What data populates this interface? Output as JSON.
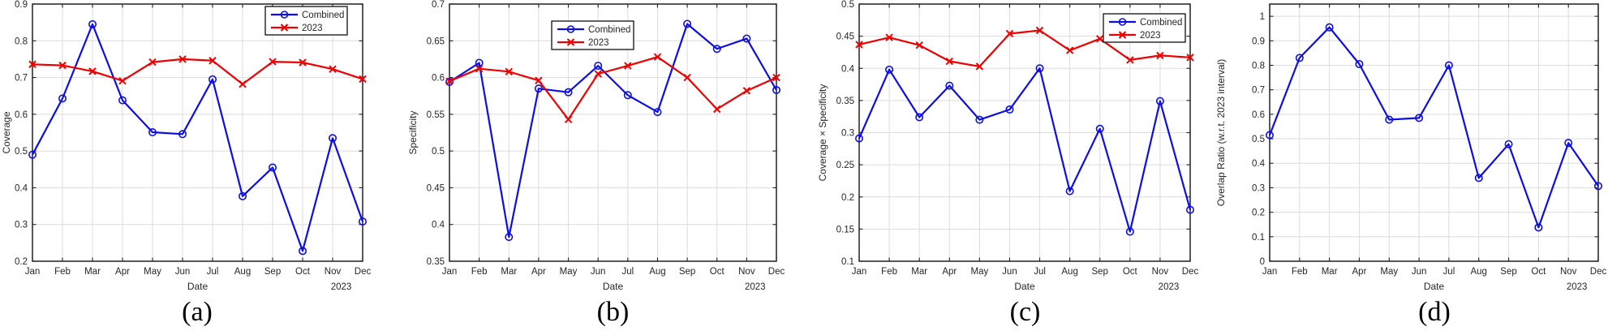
{
  "figure": {
    "background": "#ffffff"
  },
  "colors": {
    "combined": "#0d0de6",
    "year2023": "#ef0000",
    "grid": "#dcdcdc",
    "axis": "#202020",
    "text": "#262626",
    "legend_bg": "#ffffff"
  },
  "chart_data": [
    {
      "id": "a",
      "type": "line",
      "caption": "(a)",
      "xlabel": "Date",
      "ylabel": "Coverage",
      "x_secondary_label": "2023",
      "categories": [
        "Jan",
        "Feb",
        "Mar",
        "Apr",
        "May",
        "Jun",
        "Jul",
        "Aug",
        "Sep",
        "Oct",
        "Nov",
        "Dec"
      ],
      "ylim": [
        0.2,
        0.9
      ],
      "yticks": [
        0.2,
        0.3,
        0.4,
        0.5,
        0.6,
        0.7,
        0.8,
        0.9
      ],
      "ytick_labels": [
        "0.2",
        "0.3",
        "0.4",
        "0.5",
        "0.6",
        "0.7",
        "0.8",
        "0.9"
      ],
      "grid": true,
      "legend": {
        "visible": true,
        "position": "top-right",
        "entries": [
          "Combined",
          "2023"
        ]
      },
      "series": [
        {
          "name": "Combined",
          "color_key": "combined",
          "marker": "circle",
          "values": [
            0.49,
            0.643,
            0.845,
            0.638,
            0.551,
            0.546,
            0.695,
            0.377,
            0.455,
            0.228,
            0.535,
            0.308
          ]
        },
        {
          "name": "2023",
          "color_key": "year2023",
          "marker": "x",
          "values": [
            0.736,
            0.733,
            0.717,
            0.691,
            0.742,
            0.75,
            0.746,
            0.682,
            0.743,
            0.741,
            0.723,
            0.696
          ]
        }
      ]
    },
    {
      "id": "b",
      "type": "line",
      "caption": "(b)",
      "xlabel": "Date",
      "ylabel": "Specificity",
      "x_secondary_label": "2023",
      "categories": [
        "Jan",
        "Feb",
        "Mar",
        "Apr",
        "May",
        "Jun",
        "Jul",
        "Aug",
        "Sep",
        "Oct",
        "Nov",
        "Dec"
      ],
      "ylim": [
        0.35,
        0.7
      ],
      "yticks": [
        0.35,
        0.4,
        0.45,
        0.5,
        0.55,
        0.6,
        0.65,
        0.7
      ],
      "ytick_labels": [
        "0.35",
        "0.4",
        "0.45",
        "0.5",
        "0.55",
        "0.6",
        "0.65",
        "0.7"
      ],
      "grid": true,
      "legend": {
        "visible": true,
        "position": "top-center",
        "entries": [
          "Combined",
          "2023"
        ]
      },
      "series": [
        {
          "name": "Combined",
          "color_key": "combined",
          "marker": "circle",
          "values": [
            0.594,
            0.62,
            0.383,
            0.585,
            0.58,
            0.616,
            0.576,
            0.553,
            0.673,
            0.639,
            0.653,
            0.583
          ]
        },
        {
          "name": "2023",
          "color_key": "year2023",
          "marker": "x",
          "values": [
            0.595,
            0.612,
            0.608,
            0.596,
            0.543,
            0.605,
            0.616,
            0.628,
            0.6,
            0.557,
            0.582,
            0.6
          ]
        }
      ]
    },
    {
      "id": "c",
      "type": "line",
      "caption": "(c)",
      "xlabel": "Date",
      "ylabel": "Coverage × Specificity",
      "x_secondary_label": "2023",
      "categories": [
        "Jan",
        "Feb",
        "Mar",
        "Apr",
        "May",
        "Jun",
        "Jul",
        "Aug",
        "Sep",
        "Oct",
        "Nov",
        "Dec"
      ],
      "ylim": [
        0.1,
        0.5
      ],
      "yticks": [
        0.1,
        0.15,
        0.2,
        0.25,
        0.3,
        0.35,
        0.4,
        0.45,
        0.5
      ],
      "ytick_labels": [
        "0.1",
        "0.15",
        "0.2",
        "0.25",
        "0.3",
        "0.35",
        "0.4",
        "0.45",
        "0.5"
      ],
      "grid": true,
      "legend": {
        "visible": true,
        "position": "top-right",
        "entries": [
          "Combined",
          "2023"
        ]
      },
      "series": [
        {
          "name": "Combined",
          "color_key": "combined",
          "marker": "circle",
          "values": [
            0.291,
            0.398,
            0.324,
            0.373,
            0.32,
            0.336,
            0.4,
            0.209,
            0.306,
            0.146,
            0.349,
            0.18
          ]
        },
        {
          "name": "2023",
          "color_key": "year2023",
          "marker": "x",
          "values": [
            0.437,
            0.448,
            0.436,
            0.411,
            0.403,
            0.454,
            0.459,
            0.428,
            0.446,
            0.413,
            0.42,
            0.417
          ]
        }
      ]
    },
    {
      "id": "d",
      "type": "line",
      "caption": "(d)",
      "xlabel": "Date",
      "ylabel": "Overlap Ratio (w.r.t. 2023 interval)",
      "x_secondary_label": "2023",
      "categories": [
        "Jan",
        "Feb",
        "Mar",
        "Apr",
        "May",
        "Jun",
        "Jul",
        "Aug",
        "Sep",
        "Oct",
        "Nov",
        "Dec"
      ],
      "ylim": [
        0,
        1.05
      ],
      "yticks": [
        0,
        0.1,
        0.2,
        0.3,
        0.4,
        0.5,
        0.6,
        0.7,
        0.8,
        0.9,
        1
      ],
      "ytick_labels": [
        "0",
        "0.1",
        "0.2",
        "0.3",
        "0.4",
        "0.5",
        "0.6",
        "0.7",
        "0.8",
        "0.9",
        "1"
      ],
      "grid": true,
      "legend": {
        "visible": false,
        "position": null,
        "entries": []
      },
      "series": [
        {
          "name": "Combined",
          "color_key": "combined",
          "marker": "circle",
          "values": [
            0.515,
            0.83,
            0.955,
            0.805,
            0.578,
            0.585,
            0.8,
            0.34,
            0.478,
            0.138,
            0.483,
            0.307
          ]
        }
      ]
    }
  ]
}
